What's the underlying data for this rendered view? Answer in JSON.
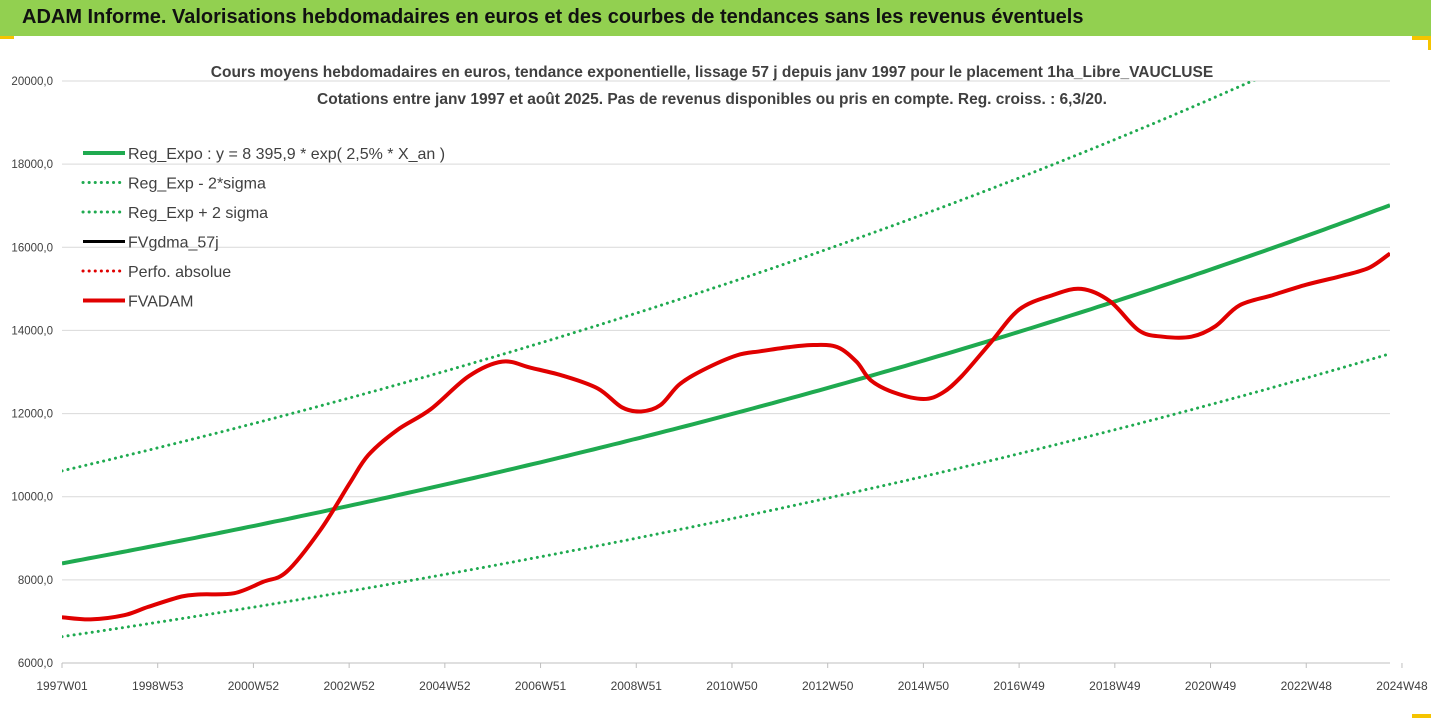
{
  "banner": {
    "title": "ADAM Informe. Valorisations hebdomadaires en euros et des courbes de tendances sans les revenus éventuels"
  },
  "chart_data": {
    "type": "line",
    "title": "Cours moyens hebdomadaires en euros, tendance exponentielle, lissage 57 j depuis janv 1997 pour le placement 1ha_Libre_VAUCLUSE",
    "subtitle": "Cotations entre janv 1997 et août 2025. Pas de revenus disponibles ou pris en compte. Reg. croiss. : 6,3/20.",
    "xlabel": "",
    "ylabel": "",
    "ylim": [
      6000,
      20000
    ],
    "xlim": [
      0,
      27.75
    ],
    "grid": true,
    "legend_position": "top-left",
    "y_ticks": [
      "6000,0",
      "8000,0",
      "10000,0",
      "12000,0",
      "14000,0",
      "16000,0",
      "18000,0",
      "20000,0"
    ],
    "y_tick_values": [
      6000,
      8000,
      10000,
      12000,
      14000,
      16000,
      18000,
      20000
    ],
    "x_ticks": [
      "1997W01",
      "1998W53",
      "2000W52",
      "2002W52",
      "2004W52",
      "2006W51",
      "2008W51",
      "2010W50",
      "2012W50",
      "2014W50",
      "2016W49",
      "2018W49",
      "2020W49",
      "2022W48",
      "2024W48"
    ],
    "x_tick_positions": [
      0,
      2,
      4,
      6,
      8,
      10,
      12,
      14,
      16,
      18,
      20,
      22,
      24,
      26,
      28
    ],
    "series": [
      {
        "name": "Reg_Expo : y = 8 395,9 * exp( 2,5% *  X_an )",
        "style": "solid-thick",
        "color": "#1faa50",
        "formula": {
          "a": 8395.9,
          "r": 0.02545,
          "k": 1
        }
      },
      {
        "name": "Reg_Exp - 2*sigma",
        "style": "dotted",
        "color": "#1faa50",
        "formula": {
          "a": 8395.9,
          "r": 0.02545,
          "k": 0.79
        }
      },
      {
        "name": "Reg_Exp + 2 sigma",
        "style": "dotted",
        "color": "#1faa50",
        "formula": {
          "a": 8395.9,
          "r": 0.02545,
          "k": 1.265
        }
      },
      {
        "name": "FVgdma_57j",
        "style": "solid",
        "color": "#000000",
        "ref": "fv"
      },
      {
        "name": "Perfo. absolue",
        "style": "dotted",
        "color": "#e00000",
        "ref": "none"
      },
      {
        "name": "FVADAM",
        "style": "solid-thick",
        "color": "#e00000",
        "ref": "fv"
      }
    ],
    "fv_points": {
      "x": [
        0,
        0.6,
        1.3,
        1.8,
        2.5,
        2.9,
        3.6,
        4.2,
        4.7,
        5.4,
        6.0,
        6.4,
        7.0,
        7.7,
        8.5,
        9.2,
        9.8,
        10.5,
        11.2,
        11.7,
        12.1,
        12.5,
        12.9,
        13.4,
        14.1,
        14.6,
        15.2,
        15.7,
        16.2,
        16.6,
        16.9,
        17.4,
        18.0,
        18.4,
        18.8,
        19.4,
        20.0,
        20.7,
        21.3,
        21.9,
        22.5,
        23.0,
        23.6,
        24.1,
        24.6,
        25.3,
        26.0,
        26.7,
        27.3,
        27.75
      ],
      "y": [
        7100,
        7050,
        7150,
        7350,
        7600,
        7650,
        7680,
        7950,
        8200,
        9200,
        10300,
        11000,
        11600,
        12100,
        12900,
        13250,
        13100,
        12900,
        12600,
        12150,
        12050,
        12200,
        12700,
        13050,
        13400,
        13500,
        13600,
        13650,
        13600,
        13250,
        12800,
        12500,
        12350,
        12500,
        12900,
        13700,
        14500,
        14850,
        15000,
        14700,
        14000,
        13850,
        13850,
        14100,
        14600,
        14850,
        15100,
        15300,
        15500,
        15850
      ]
    }
  }
}
